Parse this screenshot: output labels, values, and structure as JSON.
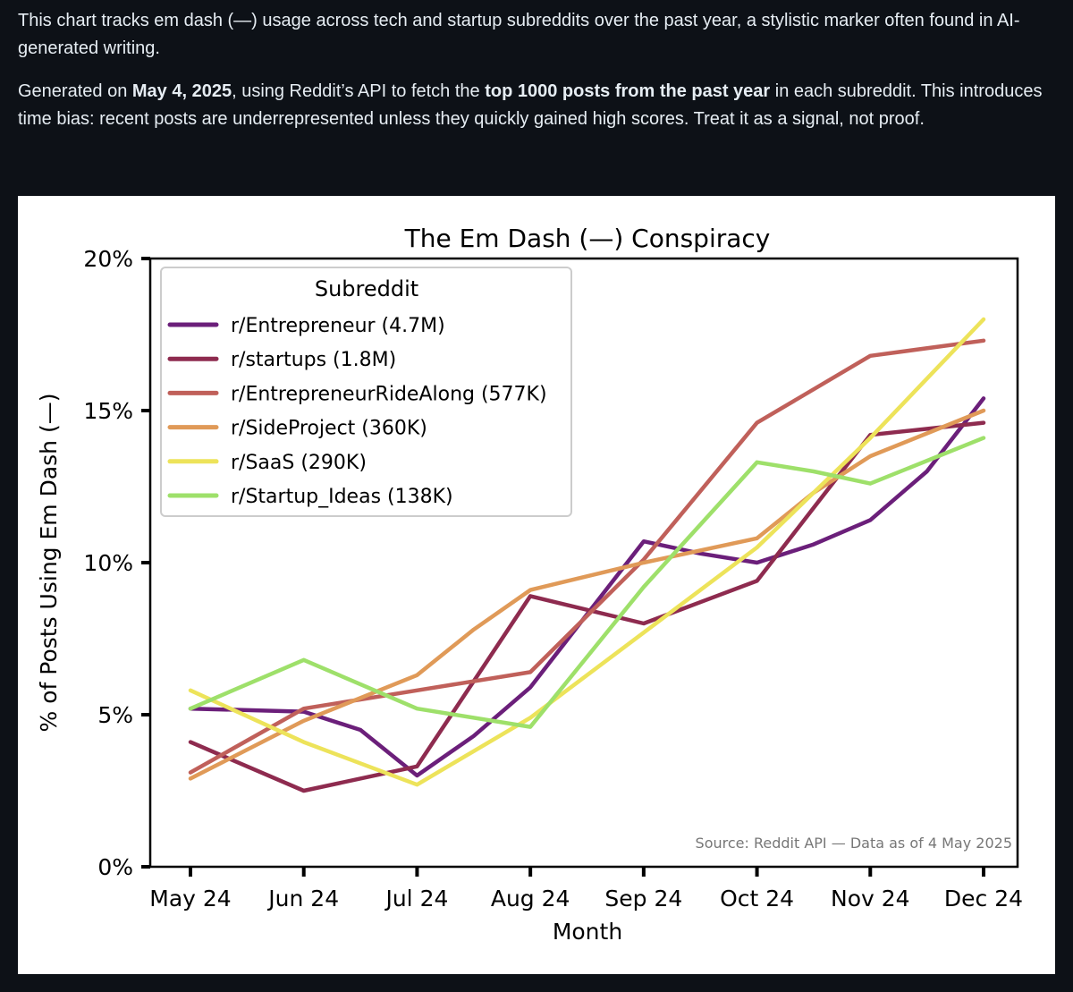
{
  "post": {
    "line1": "This chart tracks em dash (—) usage across tech and startup subreddits over the past year, a stylistic marker often found in AI-generated writing.",
    "p2_a": "Generated on ",
    "p2_b": "May 4, 2025",
    "p2_c": ", using Reddit’s API to fetch the ",
    "p2_d": "top 1000 posts from the past year",
    "p2_e": " in each subreddit. This introduces time bias: recent posts are underrepresented unless they quickly gained high scores. Treat it as a signal, not proof."
  },
  "chart_data": {
    "type": "line",
    "title": "The Em Dash (—) Conspiracy",
    "xlabel": "Month",
    "ylabel": "% of Posts Using Em Dash (—)",
    "x": [
      "May 24",
      "Jun 24",
      "Jul 24",
      "Aug 24",
      "Sep 24",
      "Oct 24",
      "Nov 24",
      "Dec 24"
    ],
    "ylim": [
      0,
      20
    ],
    "yticks": [
      0,
      5,
      10,
      15,
      20
    ],
    "ytick_labels": [
      "0%",
      "5%",
      "10%",
      "15%",
      "20%"
    ],
    "grid": false,
    "legend": {
      "title": "Subreddit",
      "position": "top-left"
    },
    "annotation": "Source: Reddit API — Data as of 4 May 2025",
    "series": [
      {
        "name": "r/Entrepreneur (4.7M)",
        "color": "#6b1f7a",
        "points": [
          [
            0,
            5.2
          ],
          [
            1,
            5.1
          ],
          [
            1.5,
            4.5
          ],
          [
            2,
            3.0
          ],
          [
            2.5,
            4.3
          ],
          [
            3,
            5.9
          ],
          [
            3.5,
            8.3
          ],
          [
            4,
            10.7
          ],
          [
            4.5,
            10.3
          ],
          [
            5,
            10.0
          ],
          [
            5.5,
            10.6
          ],
          [
            6,
            11.4
          ],
          [
            6.5,
            13.0
          ],
          [
            7,
            15.4
          ]
        ]
      },
      {
        "name": "r/startups (1.8M)",
        "color": "#8e2b4f",
        "points": [
          [
            0,
            4.1
          ],
          [
            1,
            2.5
          ],
          [
            2,
            3.3
          ],
          [
            3,
            8.9
          ],
          [
            4,
            8.0
          ],
          [
            4.5,
            8.7
          ],
          [
            5,
            9.4
          ],
          [
            5.5,
            11.8
          ],
          [
            6,
            14.2
          ],
          [
            7,
            14.6
          ]
        ]
      },
      {
        "name": "r/EntrepreneurRideAlong (577K)",
        "color": "#c0605a",
        "points": [
          [
            0,
            3.1
          ],
          [
            1,
            5.2
          ],
          [
            2,
            5.8
          ],
          [
            3,
            6.4
          ],
          [
            4,
            10.1
          ],
          [
            5,
            14.6
          ],
          [
            6,
            16.8
          ],
          [
            7,
            17.3
          ]
        ]
      },
      {
        "name": "r/SideProject (360K)",
        "color": "#e09a58",
        "points": [
          [
            0,
            2.9
          ],
          [
            1,
            4.8
          ],
          [
            2,
            6.3
          ],
          [
            2.5,
            7.8
          ],
          [
            3,
            9.1
          ],
          [
            4,
            10.0
          ],
          [
            5,
            10.8
          ],
          [
            5.5,
            12.3
          ],
          [
            6,
            13.5
          ],
          [
            7,
            15.0
          ]
        ]
      },
      {
        "name": "r/SaaS (290K)",
        "color": "#ede35a",
        "points": [
          [
            0,
            5.8
          ],
          [
            1,
            4.1
          ],
          [
            2,
            2.7
          ],
          [
            3,
            4.9
          ],
          [
            4,
            7.7
          ],
          [
            5,
            10.5
          ],
          [
            6,
            14.1
          ],
          [
            7,
            18.0
          ]
        ]
      },
      {
        "name": "r/Startup_Ideas (138K)",
        "color": "#9ee06a",
        "points": [
          [
            0,
            5.2
          ],
          [
            1,
            6.8
          ],
          [
            2,
            5.2
          ],
          [
            3,
            4.6
          ],
          [
            4,
            9.2
          ],
          [
            5,
            13.3
          ],
          [
            5.5,
            13.0
          ],
          [
            6,
            12.6
          ],
          [
            7,
            14.1
          ]
        ]
      }
    ]
  }
}
